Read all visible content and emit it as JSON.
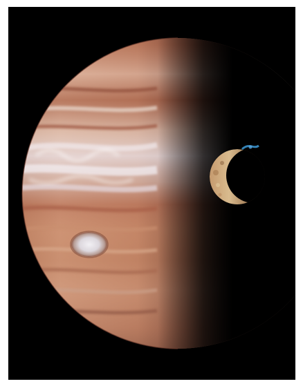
{
  "image": {
    "subject": "Jupiter and Io",
    "background_color": "#000000",
    "frame_color": "#ffffff",
    "colors": {
      "jupiter_base": "#c8896a",
      "jupiter_bands": "#a4583e",
      "jupiter_highlight": "#e9dcd2",
      "great_red_spot": "#e8e6ea",
      "io_surface": "#d2b184",
      "io_volcano_plume": "#3a8fc8"
    }
  }
}
